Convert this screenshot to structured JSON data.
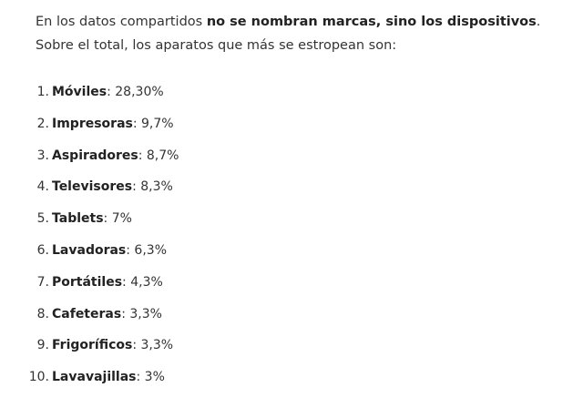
{
  "intro": {
    "part1": "En los datos compartidos ",
    "bold": "no se nombran marcas, sino los dispositivos",
    "part2": ".",
    "line2": "Sobre el total, los aparatos que más se estropean son:"
  },
  "items": [
    {
      "num": "1.",
      "name": "Móviles",
      "value": ": 28,30%"
    },
    {
      "num": "2.",
      "name": "Impresoras",
      "value": ": 9,7%"
    },
    {
      "num": "3.",
      "name": "Aspiradores",
      "value": ": 8,7%"
    },
    {
      "num": "4.",
      "name": "Televisores",
      "value": ": 8,3%"
    },
    {
      "num": "5.",
      "name": "Tablets",
      "value": ": 7%"
    },
    {
      "num": "6.",
      "name": "Lavadoras",
      "value": ": 6,3%"
    },
    {
      "num": "7.",
      "name": "Portátiles",
      "value": ": 4,3%"
    },
    {
      "num": "8.",
      "name": "Cafeteras",
      "value": ": 3,3%"
    },
    {
      "num": "9.",
      "name": "Frigoríficos",
      "value": ": 3,3%"
    },
    {
      "num": "10.",
      "name": "Lavavajillas",
      "value": ": 3%"
    }
  ]
}
